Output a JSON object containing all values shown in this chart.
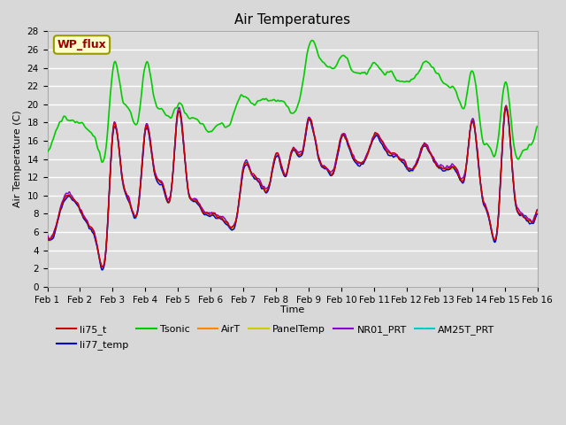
{
  "title": "Air Temperatures",
  "xlabel": "Time",
  "ylabel": "Air Temperature (C)",
  "ylim": [
    0,
    28
  ],
  "yticks": [
    0,
    2,
    4,
    6,
    8,
    10,
    12,
    14,
    16,
    18,
    20,
    22,
    24,
    26,
    28
  ],
  "xtick_labels": [
    "Feb 1",
    "Feb 2",
    "Feb 3",
    "Feb 4",
    "Feb 5",
    "Feb 6",
    "Feb 7",
    "Feb 8",
    "Feb 9",
    "Feb 10",
    "Feb 11",
    "Feb 12",
    "Feb 13",
    "Feb 14",
    "Feb 15",
    "Feb 16"
  ],
  "bg_color": "#d8d8d8",
  "plot_bg_color": "#dcdcdc",
  "annotation_text": "WP_flux",
  "annotation_color": "#990000",
  "annotation_bg": "#ffffcc",
  "annotation_border": "#999900",
  "series": {
    "li75_t": {
      "color": "#cc0000",
      "lw": 1.0,
      "zorder": 4
    },
    "li77_temp": {
      "color": "#0000cc",
      "lw": 1.0,
      "zorder": 4
    },
    "Tsonic": {
      "color": "#00cc00",
      "lw": 1.2,
      "zorder": 5
    },
    "AirT": {
      "color": "#ff8800",
      "lw": 1.0,
      "zorder": 4
    },
    "PanelTemp": {
      "color": "#cccc00",
      "lw": 1.0,
      "zorder": 4
    },
    "NR01_PRT": {
      "color": "#8800cc",
      "lw": 1.0,
      "zorder": 4
    },
    "AM25T_PRT": {
      "color": "#00cccc",
      "lw": 1.2,
      "zorder": 3
    }
  },
  "base_keypoints_t": [
    0,
    0.3,
    0.5,
    0.8,
    1.0,
    1.3,
    1.5,
    1.8,
    2.0,
    2.3,
    2.5,
    2.8,
    3.0,
    3.3,
    3.5,
    3.8,
    4.0,
    4.3,
    4.5,
    4.8,
    5.0,
    5.3,
    5.5,
    5.8,
    6.0,
    6.3,
    6.5,
    6.8,
    7.0,
    7.3,
    7.5,
    7.8,
    8.0,
    8.3,
    8.5,
    8.8,
    9.0,
    9.3,
    9.5,
    9.8,
    10.0,
    10.3,
    10.5,
    10.8,
    11.0,
    11.3,
    11.5,
    11.8,
    12.0,
    12.3,
    12.5,
    12.8,
    13.0,
    13.3,
    13.5,
    13.8,
    14.0,
    14.3,
    14.5,
    14.8,
    15.0
  ],
  "base_keypoints_v": [
    5.5,
    7.0,
    9.5,
    9.5,
    8.5,
    6.5,
    5.0,
    4.0,
    17.0,
    11.5,
    9.5,
    9.0,
    17.5,
    12.0,
    11.5,
    10.5,
    19.5,
    10.5,
    9.5,
    8.0,
    8.0,
    7.5,
    7.0,
    7.5,
    13.0,
    12.0,
    11.5,
    11.0,
    14.5,
    12.0,
    15.0,
    14.5,
    18.5,
    14.0,
    13.0,
    13.0,
    16.5,
    14.5,
    13.5,
    14.5,
    16.5,
    15.5,
    14.5,
    14.0,
    13.0,
    13.5,
    15.5,
    14.0,
    13.0,
    13.0,
    13.0,
    12.5,
    18.5,
    10.0,
    8.0,
    7.0,
    19.5,
    10.0,
    8.0,
    7.0,
    8.5
  ],
  "tsonic_keypoints_t": [
    0,
    0.3,
    0.5,
    0.8,
    1.0,
    1.3,
    1.5,
    1.8,
    2.0,
    2.3,
    2.5,
    2.8,
    3.0,
    3.3,
    3.5,
    3.8,
    4.0,
    4.3,
    4.5,
    4.8,
    5.0,
    5.3,
    5.5,
    5.8,
    6.0,
    6.3,
    6.5,
    6.8,
    7.0,
    7.3,
    7.5,
    7.8,
    8.0,
    8.3,
    8.5,
    8.8,
    9.0,
    9.3,
    9.5,
    9.8,
    10.0,
    10.3,
    10.5,
    10.8,
    11.0,
    11.3,
    11.5,
    11.8,
    12.0,
    12.3,
    12.5,
    12.8,
    13.0,
    13.3,
    13.5,
    13.8,
    14.0,
    14.3,
    14.5,
    14.8,
    15.0
  ],
  "tsonic_keypoints_v": [
    14.5,
    17.5,
    18.5,
    18.0,
    18.0,
    17.0,
    16.0,
    15.0,
    24.0,
    20.5,
    19.5,
    18.5,
    24.5,
    20.0,
    19.5,
    18.5,
    20.0,
    18.5,
    18.5,
    17.5,
    17.0,
    18.0,
    17.5,
    20.0,
    21.0,
    20.0,
    20.5,
    20.5,
    20.5,
    20.0,
    19.0,
    22.0,
    26.5,
    25.5,
    24.5,
    24.0,
    25.5,
    24.0,
    23.5,
    23.5,
    24.5,
    23.5,
    23.5,
    22.5,
    22.5,
    23.0,
    24.5,
    24.0,
    23.0,
    22.0,
    21.5,
    20.0,
    24.0,
    16.5,
    15.5,
    16.0,
    22.5,
    15.0,
    14.5,
    15.5,
    17.5
  ]
}
